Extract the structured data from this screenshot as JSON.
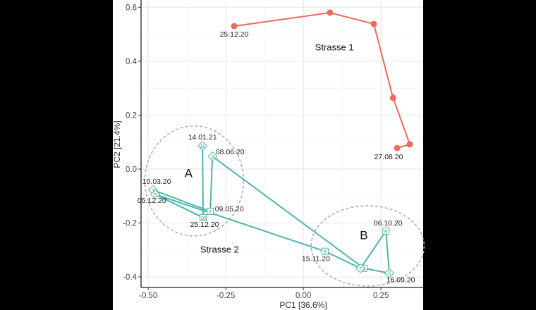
{
  "chart_data": {
    "type": "line",
    "xlabel": "PC1 [36.6%]",
    "ylabel": "PC2 [21.4%]",
    "xlim": [
      -0.523,
      0.386
    ],
    "ylim": [
      -0.439,
      0.627
    ],
    "xticks": [
      -0.5,
      -0.25,
      0.0,
      0.25
    ],
    "xtick_labels": [
      "-0.50",
      "-0.25",
      "0.00",
      "0.25"
    ],
    "yticks": [
      -0.4,
      -0.2,
      0.0,
      0.2,
      0.4,
      0.6
    ],
    "ytick_labels": [
      "-0.4",
      "-0.2",
      "0.0",
      "0.2",
      "0.4",
      "0.6"
    ],
    "grid": true,
    "series": [
      {
        "name": "Strasse 1",
        "color": "#EE6A5B",
        "marker": "circle",
        "x": [
          -0.223,
          0.086,
          0.227,
          0.289,
          0.343,
          0.302
        ],
        "y": [
          0.53,
          0.58,
          0.538,
          0.264,
          0.092,
          0.078
        ],
        "point_labels": [
          "25.12.20",
          "",
          "",
          "",
          "",
          "27.08.20"
        ]
      },
      {
        "name": "Strasse 2",
        "color": "#4DB6AC",
        "marker": "numbered-diamond",
        "ids": [
          "1",
          "2",
          "3",
          "4",
          "5",
          "6",
          "7",
          "8",
          "9",
          "10",
          "11"
        ],
        "x": [
          -0.484,
          -0.3,
          -0.293,
          0.195,
          0.277,
          0.266,
          0.184,
          0.07,
          -0.477,
          -0.323,
          -0.325
        ],
        "y": [
          -0.078,
          -0.157,
          0.047,
          -0.368,
          -0.386,
          -0.23,
          -0.368,
          -0.305,
          -0.094,
          -0.18,
          0.086
        ],
        "point_labels": [
          "10.03.20",
          "09.05.20",
          "08.06.20",
          "",
          "16.09.20",
          "06.10.20",
          "",
          "15.11.20",
          "05.12.20",
          "25.12.20",
          "14.01.21"
        ]
      }
    ],
    "annotations": [
      {
        "text": "Strasse 1",
        "x": 0.1,
        "y": 0.44
      },
      {
        "text": "Strasse 2",
        "x": -0.27,
        "y": -0.31
      },
      {
        "text": "A",
        "x": -0.37,
        "y": -0.03
      },
      {
        "text": "B",
        "x": 0.195,
        "y": -0.26
      }
    ],
    "ellipses": [
      {
        "label": "A",
        "cx": -0.352,
        "cy": -0.044,
        "rx": 0.159,
        "ry": 0.204
      },
      {
        "label": "B",
        "cx": 0.207,
        "cy": -0.285,
        "rx": 0.182,
        "ry": 0.149
      }
    ]
  }
}
